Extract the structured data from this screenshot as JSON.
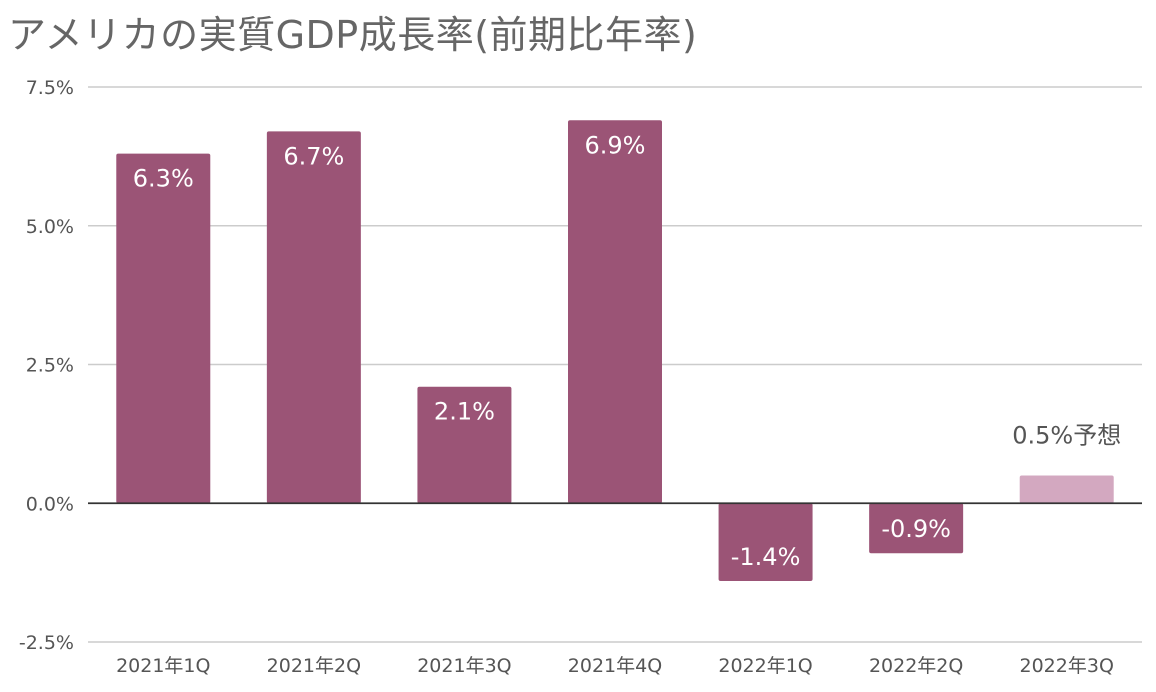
{
  "chart_data": {
    "type": "bar",
    "title": "アメリカの実質GDP成長率(前期比年率)",
    "xlabel": "",
    "ylabel": "",
    "categories": [
      "2021年1Q",
      "2021年2Q",
      "2021年3Q",
      "2021年4Q",
      "2022年1Q",
      "2022年2Q",
      "2022年3Q"
    ],
    "series": [
      {
        "values": [
          6.3,
          6.7,
          2.1,
          6.9,
          -1.4,
          -0.9,
          0.5
        ]
      }
    ],
    "data_labels": [
      "6.3%",
      "6.7%",
      "2.1%",
      "6.9%",
      "-1.4%",
      "-0.9%",
      "0.5%予想"
    ],
    "forecast": [
      false,
      false,
      false,
      false,
      false,
      false,
      true
    ],
    "ylim": [
      -2.5,
      7.5
    ],
    "yticks": [
      -2.5,
      0.0,
      2.5,
      5.0,
      7.5
    ],
    "ytick_labels": [
      "-2.5%",
      "0.0%",
      "2.5%",
      "5.0%",
      "7.5%"
    ],
    "grid": true,
    "legend": "none",
    "colors": {
      "bar": "#9b5476",
      "forecast_bar": "#d3a8c0",
      "grid": "#cccccc",
      "zero_line": "#333333"
    }
  }
}
